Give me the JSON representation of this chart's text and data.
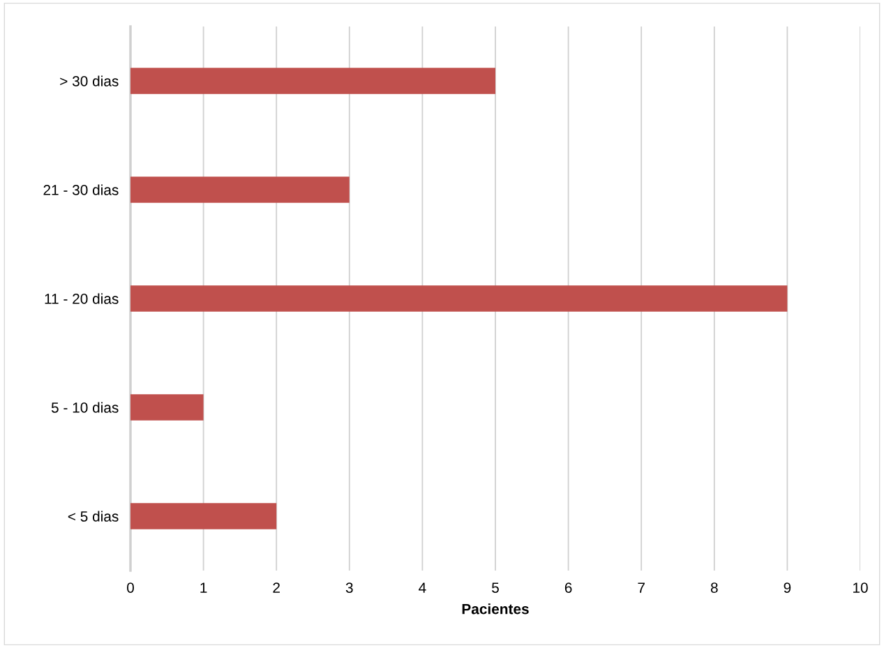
{
  "chart_data": {
    "type": "bar",
    "orientation": "horizontal",
    "xlabel": "Pacientes",
    "categories": [
      "> 30 dias",
      "21 - 30 dias",
      "11 - 20 dias",
      "5 - 10 dias",
      "< 5 dias"
    ],
    "values": [
      5,
      3,
      9,
      1,
      2
    ],
    "color": "#c0504d",
    "xlim": [
      0,
      10
    ],
    "xticks": [
      0,
      1,
      2,
      3,
      4,
      5,
      6,
      7,
      8,
      9,
      10
    ],
    "grid": "x",
    "legend": false
  }
}
